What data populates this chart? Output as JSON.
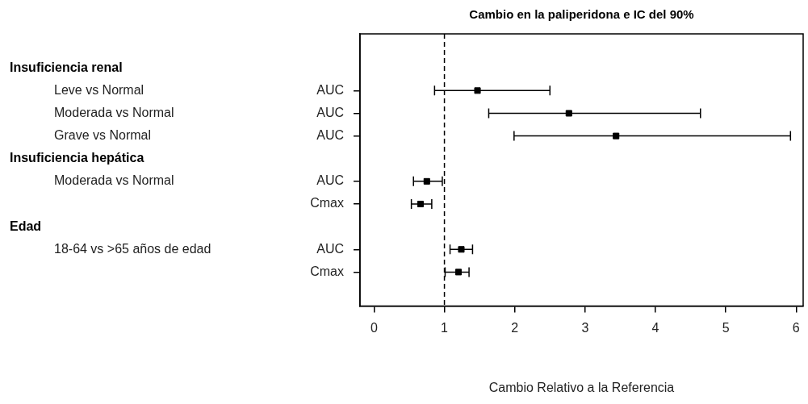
{
  "chart_data": {
    "type": "scatter",
    "title": "Cambio en la paliperidona e IC del 90%",
    "xlabel": "Cambio Relativo a la Referencia",
    "orientation": "horizontal",
    "categories": [
      null,
      null,
      "AUC",
      "AUC",
      "AUC",
      null,
      "AUC",
      "Cmax",
      null,
      "AUC",
      "Cmax",
      null
    ],
    "values": [
      null,
      null,
      1.47,
      2.77,
      3.44,
      null,
      0.75,
      0.66,
      null,
      1.24,
      1.2,
      null
    ],
    "errors": [
      null,
      null,
      [
        0.86,
        2.5
      ],
      [
        1.63,
        4.64
      ],
      [
        1.99,
        5.92
      ],
      null,
      [
        0.56,
        0.97
      ],
      [
        0.53,
        0.82
      ],
      null,
      [
        1.08,
        1.4
      ],
      [
        1.01,
        1.35
      ],
      null
    ],
    "color": "#000000",
    "marker": "square",
    "xlim": [
      -0.2,
      6.1
    ],
    "xticks": [
      0,
      1,
      2,
      3,
      4,
      5,
      6
    ],
    "grid": false,
    "legend": false,
    "ref_lines": [
      {
        "axis": "x",
        "value": 1,
        "line_style": "dashed"
      }
    ],
    "annotations": [
      "Insuficiencia renal",
      "Leve vs Normal",
      "Moderada vs Normal",
      "Grave vs Normal",
      "Insuficiencia hepática",
      "Moderada vs Normal",
      "Edad",
      "18-64 vs >65 años de edad"
    ]
  }
}
